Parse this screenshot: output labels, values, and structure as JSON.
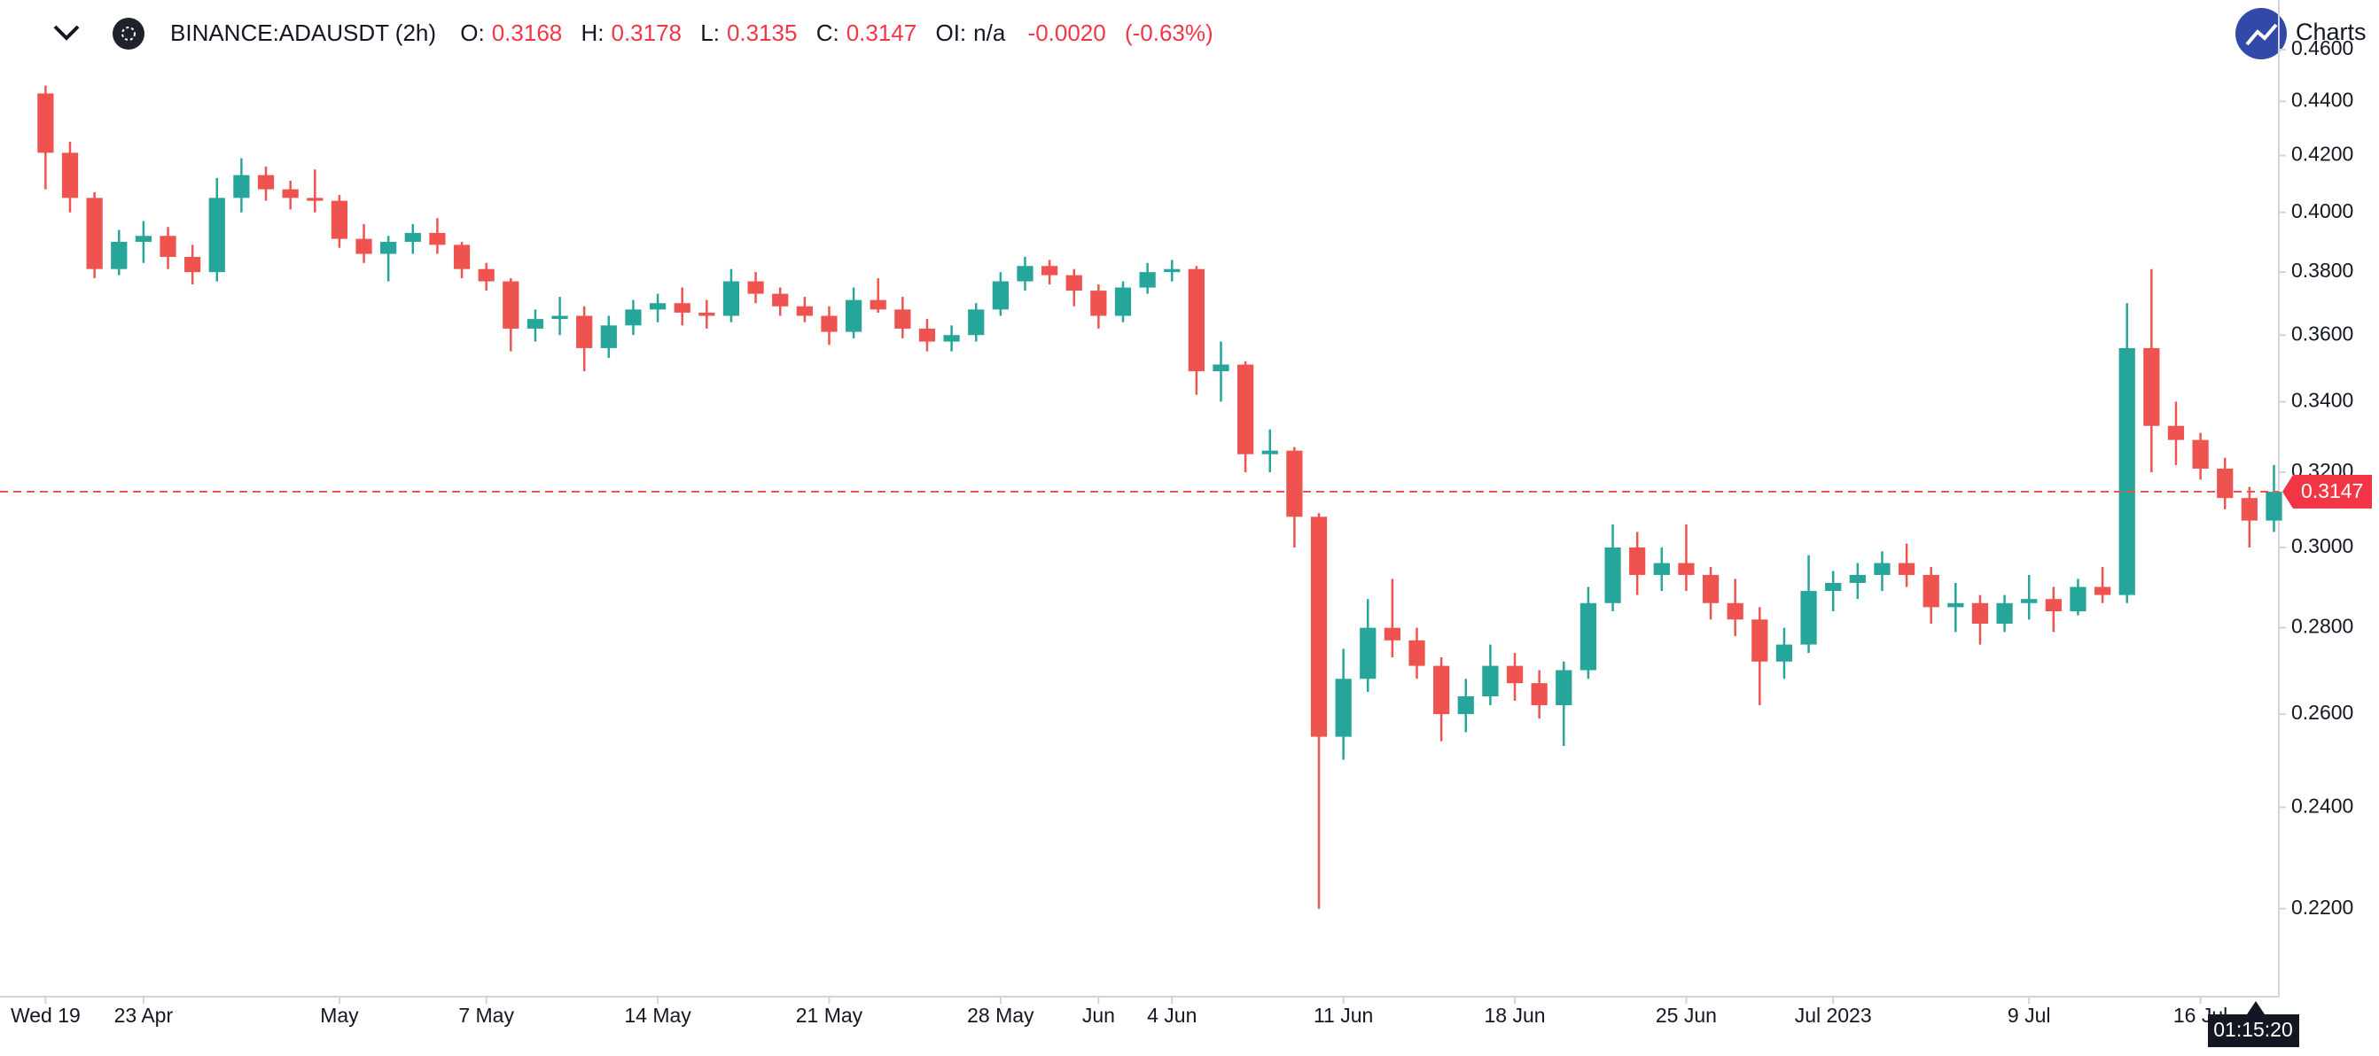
{
  "chart_data": {
    "type": "candlestick",
    "header": {
      "symbol": "BINANCE:ADAUSDT (2h)",
      "open_label": "O:",
      "open": "0.3168",
      "high_label": "H:",
      "high": "0.3178",
      "low_label": "L:",
      "low": "0.3135",
      "close_label": "C:",
      "close": "0.3147",
      "oi_label": "OI:",
      "oi": "n/a",
      "change": "-0.0020",
      "change_pct": "(-0.63%)"
    },
    "brand": "Charts",
    "countdown": "01:15:20",
    "log_scale": true,
    "up_color": "#26a69a",
    "down_color": "#ef5350",
    "last_price": 0.3147,
    "x": [
      0,
      1,
      2,
      3,
      4,
      5,
      6,
      7,
      8,
      9,
      10,
      11,
      12,
      13,
      14,
      15,
      16,
      17,
      18,
      19,
      20,
      21,
      22,
      23,
      24,
      25,
      26,
      27,
      28,
      29,
      30,
      31,
      32,
      33,
      34,
      35,
      36,
      37,
      38,
      39,
      40,
      41,
      42,
      43,
      44,
      45,
      46,
      47,
      48,
      49,
      50,
      51,
      52,
      53,
      54,
      55,
      56,
      57,
      58,
      59,
      60,
      61,
      62,
      63,
      64,
      65,
      66,
      67,
      68,
      69,
      70,
      71,
      72,
      73,
      74,
      75,
      76,
      77,
      78,
      79,
      80,
      81,
      82,
      83,
      84,
      85,
      86,
      87,
      88,
      89,
      90,
      91
    ],
    "values": [
      [
        0.443,
        0.446,
        0.408,
        0.421
      ],
      [
        0.421,
        0.425,
        0.4,
        0.405
      ],
      [
        0.405,
        0.407,
        0.378,
        0.381
      ],
      [
        0.381,
        0.394,
        0.379,
        0.39
      ],
      [
        0.39,
        0.397,
        0.383,
        0.392
      ],
      [
        0.392,
        0.395,
        0.381,
        0.385
      ],
      [
        0.385,
        0.389,
        0.376,
        0.38
      ],
      [
        0.38,
        0.412,
        0.377,
        0.405
      ],
      [
        0.405,
        0.419,
        0.4,
        0.413
      ],
      [
        0.413,
        0.416,
        0.404,
        0.408
      ],
      [
        0.408,
        0.411,
        0.401,
        0.405
      ],
      [
        0.405,
        0.415,
        0.4,
        0.404
      ],
      [
        0.404,
        0.406,
        0.388,
        0.391
      ],
      [
        0.391,
        0.396,
        0.383,
        0.386
      ],
      [
        0.386,
        0.392,
        0.377,
        0.39
      ],
      [
        0.39,
        0.396,
        0.386,
        0.393
      ],
      [
        0.393,
        0.398,
        0.386,
        0.389
      ],
      [
        0.389,
        0.39,
        0.378,
        0.381
      ],
      [
        0.381,
        0.383,
        0.374,
        0.377
      ],
      [
        0.377,
        0.378,
        0.355,
        0.362
      ],
      [
        0.362,
        0.368,
        0.358,
        0.365
      ],
      [
        0.365,
        0.372,
        0.36,
        0.366
      ],
      [
        0.366,
        0.369,
        0.349,
        0.356
      ],
      [
        0.356,
        0.366,
        0.353,
        0.363
      ],
      [
        0.363,
        0.371,
        0.36,
        0.368
      ],
      [
        0.368,
        0.373,
        0.364,
        0.37
      ],
      [
        0.37,
        0.375,
        0.363,
        0.367
      ],
      [
        0.367,
        0.371,
        0.362,
        0.366
      ],
      [
        0.366,
        0.381,
        0.364,
        0.377
      ],
      [
        0.377,
        0.38,
        0.37,
        0.373
      ],
      [
        0.373,
        0.375,
        0.366,
        0.369
      ],
      [
        0.369,
        0.372,
        0.364,
        0.366
      ],
      [
        0.366,
        0.369,
        0.357,
        0.361
      ],
      [
        0.361,
        0.375,
        0.359,
        0.371
      ],
      [
        0.371,
        0.378,
        0.367,
        0.368
      ],
      [
        0.368,
        0.372,
        0.359,
        0.362
      ],
      [
        0.362,
        0.365,
        0.355,
        0.358
      ],
      [
        0.358,
        0.363,
        0.355,
        0.36
      ],
      [
        0.36,
        0.37,
        0.358,
        0.368
      ],
      [
        0.368,
        0.38,
        0.366,
        0.377
      ],
      [
        0.377,
        0.385,
        0.374,
        0.382
      ],
      [
        0.382,
        0.384,
        0.376,
        0.379
      ],
      [
        0.379,
        0.381,
        0.369,
        0.374
      ],
      [
        0.374,
        0.376,
        0.362,
        0.366
      ],
      [
        0.366,
        0.377,
        0.364,
        0.375
      ],
      [
        0.375,
        0.383,
        0.373,
        0.38
      ],
      [
        0.38,
        0.384,
        0.377,
        0.381
      ],
      [
        0.381,
        0.382,
        0.342,
        0.349
      ],
      [
        0.349,
        0.358,
        0.34,
        0.351
      ],
      [
        0.351,
        0.352,
        0.32,
        0.325
      ],
      [
        0.325,
        0.332,
        0.32,
        0.326
      ],
      [
        0.326,
        0.327,
        0.3,
        0.308
      ],
      [
        0.308,
        0.309,
        0.22,
        0.255
      ],
      [
        0.255,
        0.275,
        0.25,
        0.268
      ],
      [
        0.268,
        0.287,
        0.265,
        0.28
      ],
      [
        0.28,
        0.292,
        0.273,
        0.277
      ],
      [
        0.277,
        0.28,
        0.268,
        0.271
      ],
      [
        0.271,
        0.273,
        0.254,
        0.26
      ],
      [
        0.26,
        0.268,
        0.256,
        0.264
      ],
      [
        0.264,
        0.276,
        0.262,
        0.271
      ],
      [
        0.271,
        0.274,
        0.263,
        0.267
      ],
      [
        0.267,
        0.27,
        0.259,
        0.262
      ],
      [
        0.262,
        0.272,
        0.253,
        0.27
      ],
      [
        0.27,
        0.29,
        0.268,
        0.286
      ],
      [
        0.286,
        0.306,
        0.284,
        0.3
      ],
      [
        0.3,
        0.304,
        0.288,
        0.293
      ],
      [
        0.293,
        0.3,
        0.289,
        0.296
      ],
      [
        0.296,
        0.306,
        0.289,
        0.293
      ],
      [
        0.293,
        0.295,
        0.282,
        0.286
      ],
      [
        0.286,
        0.292,
        0.278,
        0.282
      ],
      [
        0.282,
        0.285,
        0.262,
        0.272
      ],
      [
        0.272,
        0.28,
        0.268,
        0.276
      ],
      [
        0.276,
        0.298,
        0.274,
        0.289
      ],
      [
        0.289,
        0.294,
        0.284,
        0.291
      ],
      [
        0.291,
        0.296,
        0.287,
        0.293
      ],
      [
        0.293,
        0.299,
        0.289,
        0.296
      ],
      [
        0.296,
        0.301,
        0.29,
        0.293
      ],
      [
        0.293,
        0.295,
        0.281,
        0.285
      ],
      [
        0.285,
        0.291,
        0.279,
        0.286
      ],
      [
        0.286,
        0.288,
        0.276,
        0.281
      ],
      [
        0.281,
        0.288,
        0.279,
        0.286
      ],
      [
        0.286,
        0.293,
        0.282,
        0.287
      ],
      [
        0.287,
        0.29,
        0.279,
        0.284
      ],
      [
        0.284,
        0.292,
        0.283,
        0.29
      ],
      [
        0.29,
        0.295,
        0.286,
        0.288
      ],
      [
        0.288,
        0.37,
        0.286,
        0.356
      ],
      [
        0.356,
        0.381,
        0.32,
        0.333
      ],
      [
        0.333,
        0.34,
        0.322,
        0.329
      ],
      [
        0.329,
        0.331,
        0.318,
        0.321
      ],
      [
        0.321,
        0.324,
        0.31,
        0.313
      ],
      [
        0.313,
        0.316,
        0.3,
        0.307
      ],
      [
        0.307,
        0.322,
        0.304,
        0.3147
      ]
    ],
    "xlim": [
      -1.86,
      91.2
    ],
    "xticks": [
      {
        "value": 0,
        "label": "Wed 19"
      },
      {
        "value": 4,
        "label": "23 Apr"
      },
      {
        "value": 12,
        "label": "May"
      },
      {
        "value": 18,
        "label": "7 May"
      },
      {
        "value": 25,
        "label": "14 May"
      },
      {
        "value": 32,
        "label": "21 May"
      },
      {
        "value": 39,
        "label": "28 May"
      },
      {
        "value": 43,
        "label": "Jun"
      },
      {
        "value": 46,
        "label": "4 Jun"
      },
      {
        "value": 53,
        "label": "11 Jun"
      },
      {
        "value": 60,
        "label": "18 Jun"
      },
      {
        "value": 67,
        "label": "25 Jun"
      },
      {
        "value": 73,
        "label": "Jul 2023"
      },
      {
        "value": 81,
        "label": "9 Jul"
      },
      {
        "value": 88,
        "label": "16 Jul"
      }
    ],
    "ylim": [
      0.204,
      0.48
    ],
    "yticks": [
      {
        "value": 0.22,
        "label": "0.2200"
      },
      {
        "value": 0.24,
        "label": "0.2400"
      },
      {
        "value": 0.26,
        "label": "0.2600"
      },
      {
        "value": 0.28,
        "label": "0.2800"
      },
      {
        "value": 0.3,
        "label": "0.3000"
      },
      {
        "value": 0.32,
        "label": "0.3200"
      },
      {
        "value": 0.34,
        "label": "0.3400"
      },
      {
        "value": 0.36,
        "label": "0.3600"
      },
      {
        "value": 0.38,
        "label": "0.3800"
      },
      {
        "value": 0.4,
        "label": "0.4000"
      },
      {
        "value": 0.42,
        "label": "0.4200"
      },
      {
        "value": 0.44,
        "label": "0.4400"
      },
      {
        "value": 0.46,
        "label": "0.4600"
      }
    ]
  }
}
